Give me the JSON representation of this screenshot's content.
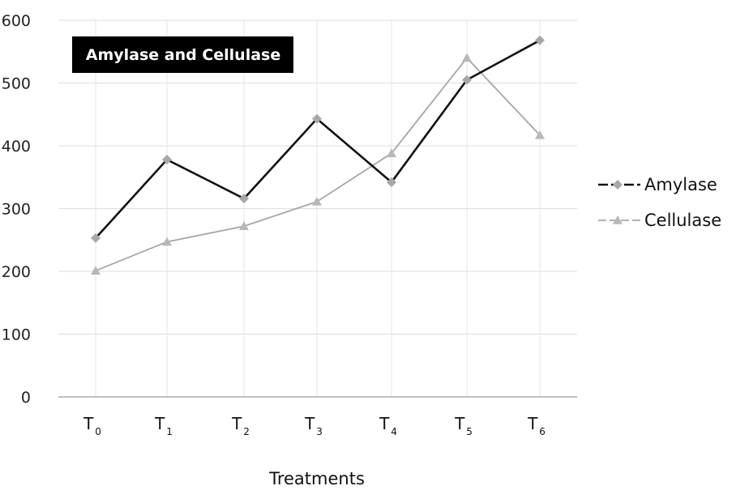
{
  "chart_data": {
    "type": "line",
    "title": "Amylase and Cellulase",
    "xlabel": "Treatments",
    "ylabel": "",
    "categories": [
      {
        "main": "T",
        "sub": "0"
      },
      {
        "main": "T",
        "sub": "1"
      },
      {
        "main": "T",
        "sub": "2"
      },
      {
        "main": "T",
        "sub": "3"
      },
      {
        "main": "T",
        "sub": "4"
      },
      {
        "main": "T",
        "sub": "5"
      },
      {
        "main": "T",
        "sub": "6"
      }
    ],
    "yticks": [
      "0",
      "100",
      "200",
      "300",
      "400",
      "500",
      "600"
    ],
    "ylim": [
      0,
      600
    ],
    "grid": true,
    "legend_position": "right",
    "series": [
      {
        "name": "Amylase",
        "values": [
          253,
          378,
          316,
          443,
          342,
          505,
          568
        ],
        "color": "#111111",
        "marker": "diamond",
        "marker_color": "#a8a8a8"
      },
      {
        "name": "Cellulase",
        "values": [
          201,
          247,
          272,
          311,
          388,
          540,
          417
        ],
        "color": "#a6a6a6",
        "marker": "triangle",
        "marker_color": "#b8b8b8"
      }
    ]
  }
}
